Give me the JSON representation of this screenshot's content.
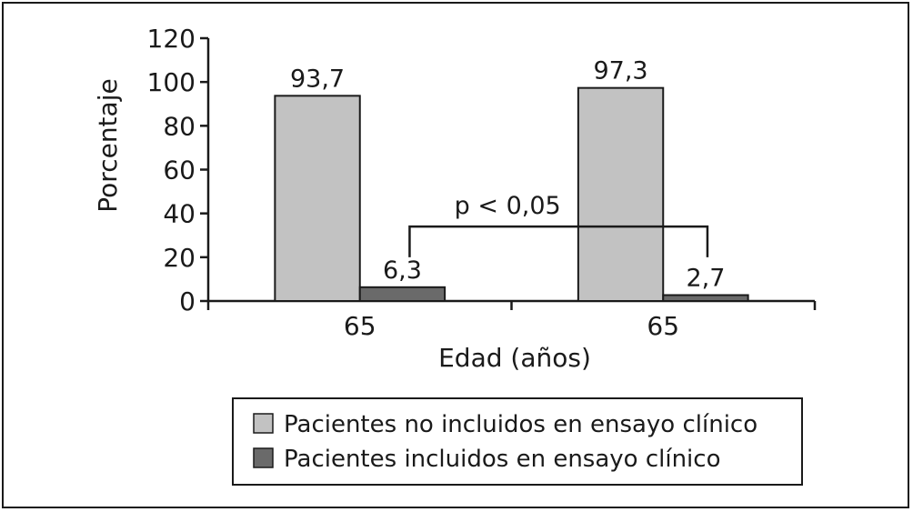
{
  "chart_data": {
    "type": "bar",
    "categories": [
      "65",
      "65"
    ],
    "series": [
      {
        "name": "Pacientes no incluidos en ensayo clínico",
        "values": [
          93.7,
          97.3
        ],
        "labels": [
          "93,7",
          "97,3"
        ],
        "color": "#c2c2c2"
      },
      {
        "name": "Pacientes incluidos en ensayo clínico",
        "values": [
          6.3,
          2.7
        ],
        "labels": [
          "6,3",
          "2,7"
        ],
        "color": "#6a6a6a"
      }
    ],
    "title": "",
    "xlabel": "Edad (años)",
    "ylabel": "Porcentaje",
    "ylim": [
      0,
      120
    ],
    "yticks": [
      0,
      20,
      40,
      60,
      80,
      100,
      120
    ],
    "ytick_labels": [
      "0",
      "20",
      "40",
      "60",
      "80",
      "100",
      "120"
    ],
    "annotation": {
      "text": "p < 0,05"
    },
    "legend_position": "bottom",
    "grid": false
  }
}
